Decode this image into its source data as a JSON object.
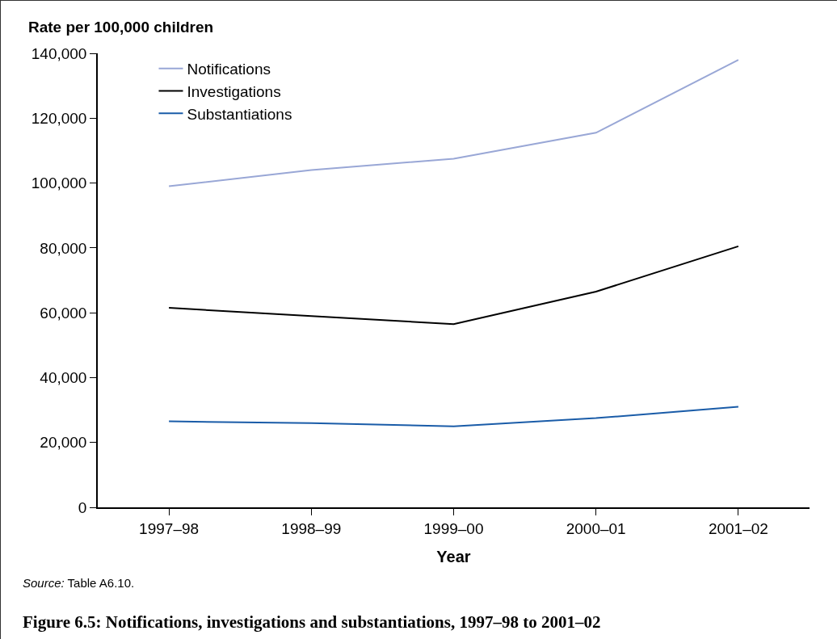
{
  "chart_data": {
    "type": "line",
    "title": "Figure 6.5: Notifications, investigations and substantiations, 1997–98 to 2001–02",
    "xlabel": "Year",
    "ylabel": "Rate per 100,000 children",
    "annotations": [
      "Source: Table A6.10."
    ],
    "categories": [
      "1997–98",
      "1998–99",
      "1999–00",
      "2000–01",
      "2001–02"
    ],
    "series": [
      {
        "name": "Notifications",
        "color": "#99a7d6",
        "values": [
          99000,
          104000,
          107500,
          115500,
          138000
        ]
      },
      {
        "name": "Investigations",
        "color": "#000000",
        "values": [
          61500,
          59000,
          56500,
          66500,
          80500
        ]
      },
      {
        "name": "Substantiations",
        "color": "#1a5ca8",
        "values": [
          26500,
          26000,
          25000,
          27500,
          31000
        ]
      }
    ],
    "ylim": [
      0,
      140000
    ],
    "yticks": [
      0,
      {
        "value": 20000,
        "label": "20,000"
      },
      {
        "value": 40000,
        "label": "40,000"
      },
      {
        "value": 60000,
        "label": "60,000"
      },
      {
        "value": 80000,
        "label": "80,000"
      },
      {
        "value": 100000,
        "label": "100,000"
      },
      {
        "value": 120000,
        "label": "120,000"
      },
      {
        "value": 140000,
        "label": "140,000"
      }
    ],
    "grid": false,
    "legend": "top left",
    "marker": "none",
    "line_style": "solid"
  }
}
